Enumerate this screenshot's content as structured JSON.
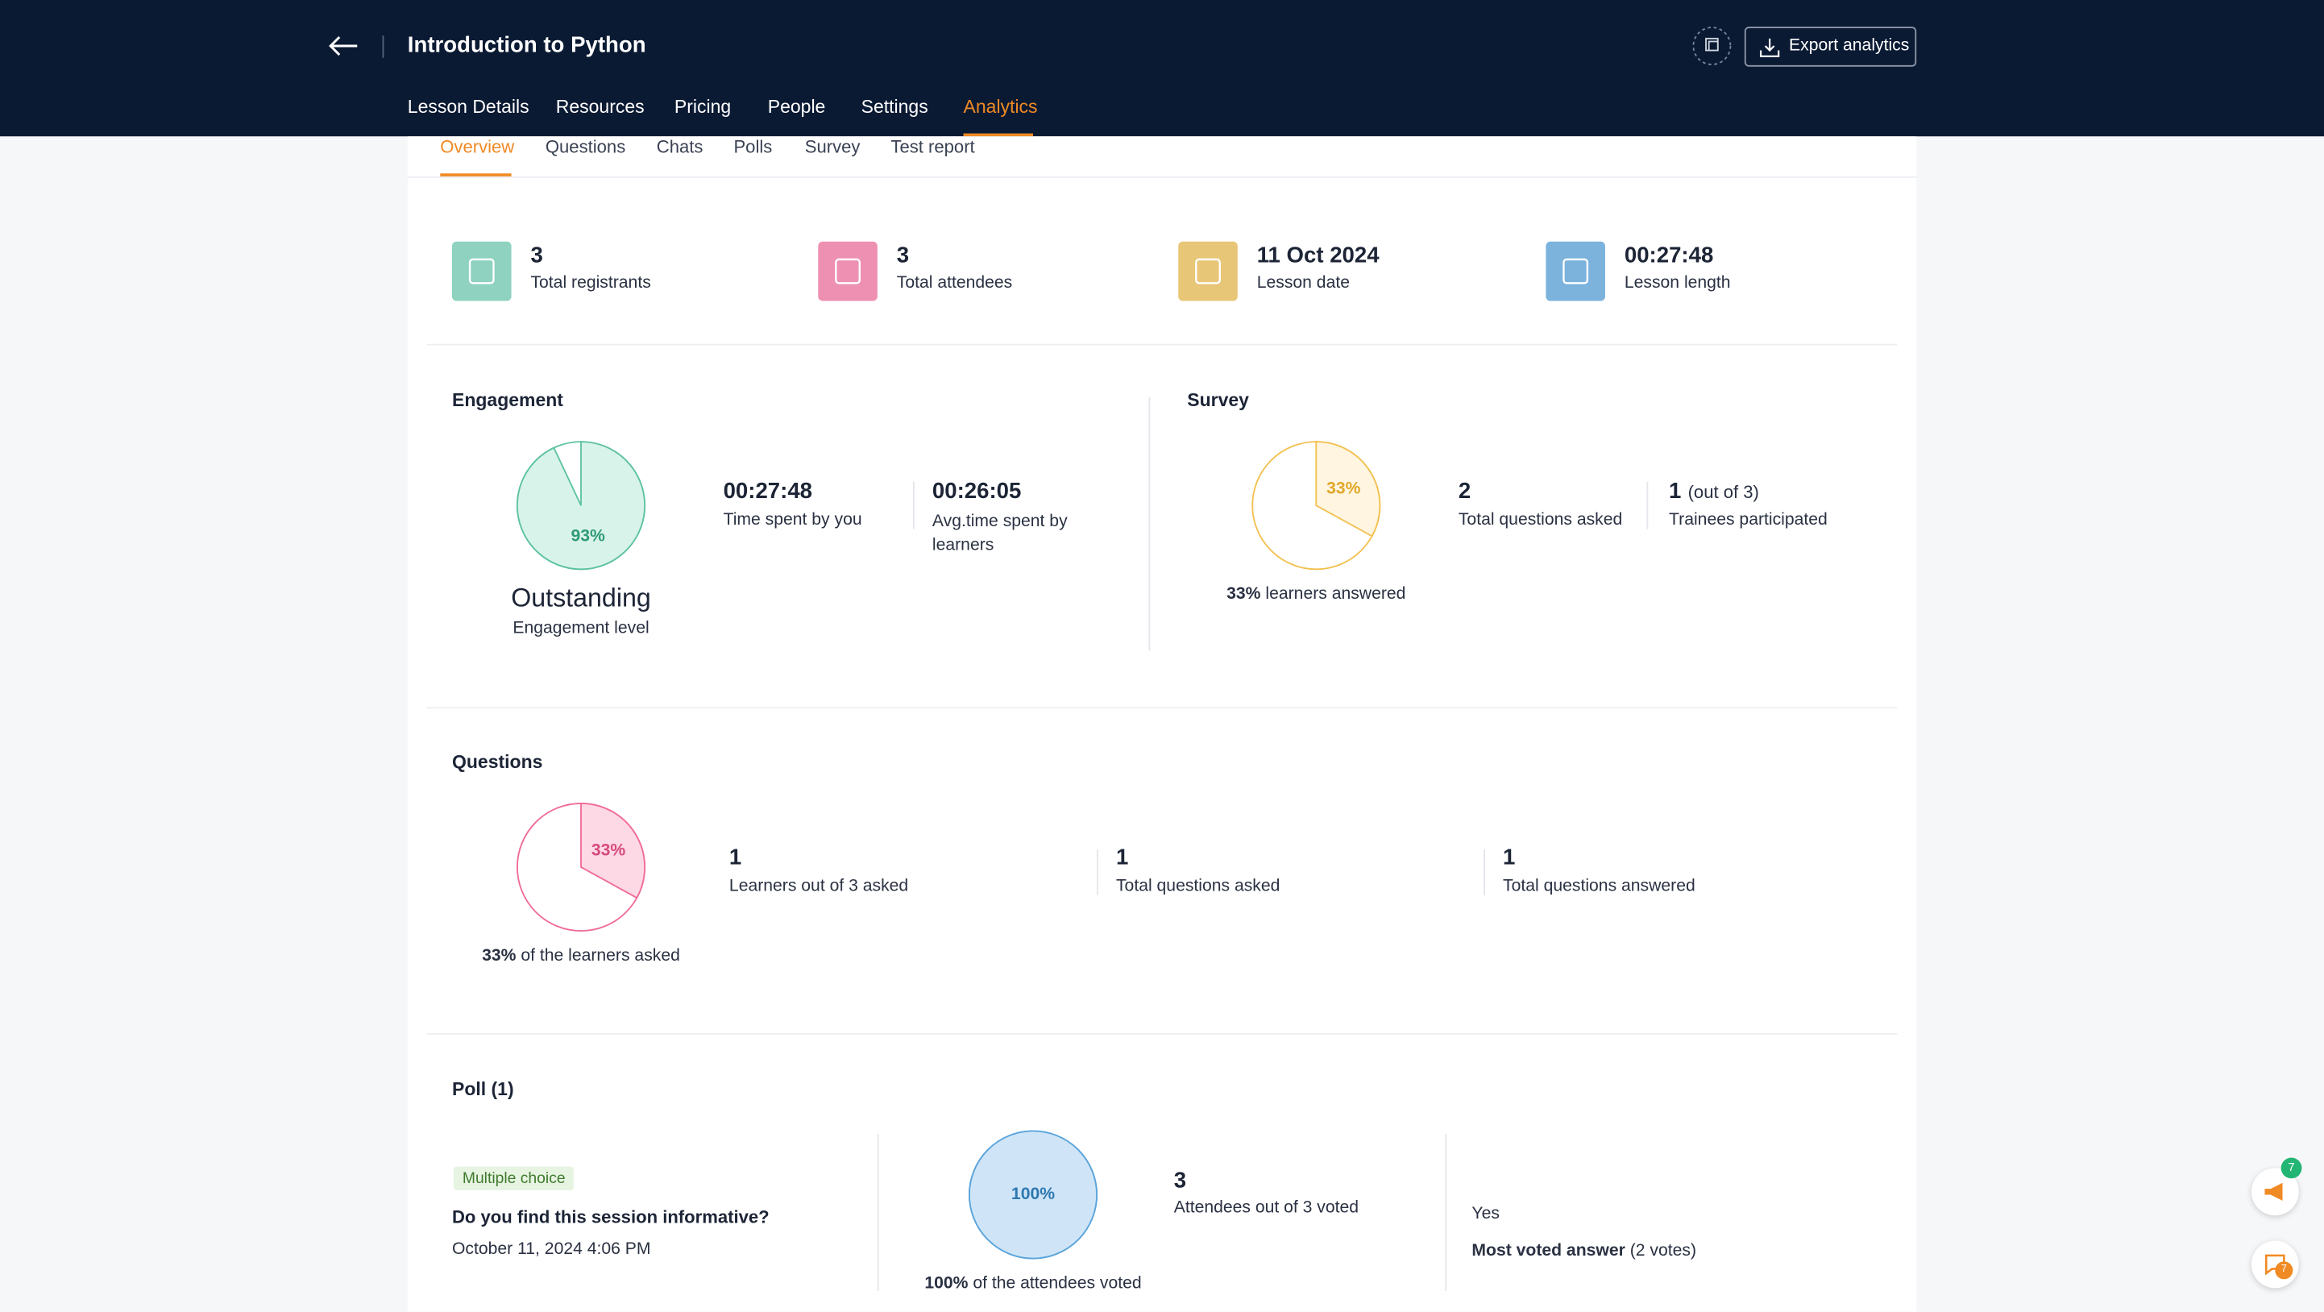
{
  "header": {
    "title": "Introduction to Python",
    "export_button": "Export analytics",
    "tabs": [
      {
        "label": "Lesson Details",
        "active": false
      },
      {
        "label": "Resources",
        "active": false
      },
      {
        "label": "Pricing",
        "active": false
      },
      {
        "label": "People",
        "active": false
      },
      {
        "label": "Settings",
        "active": false
      },
      {
        "label": "Analytics",
        "active": true
      }
    ]
  },
  "sub_tabs": [
    {
      "label": "Overview",
      "active": true
    },
    {
      "label": "Questions",
      "active": false
    },
    {
      "label": "Chats",
      "active": false
    },
    {
      "label": "Polls",
      "active": false
    },
    {
      "label": "Survey",
      "active": false
    },
    {
      "label": "Test report",
      "active": false
    }
  ],
  "stats": [
    {
      "value": "3",
      "label": "Total registrants",
      "color": "#8ed2bf"
    },
    {
      "value": "3",
      "label": "Total attendees",
      "color": "#ee90b1"
    },
    {
      "value": "11 Oct 2024",
      "label": "Lesson date",
      "color": "#e8c677"
    },
    {
      "value": "00:27:48",
      "label": "Lesson length",
      "color": "#7bb3dd"
    }
  ],
  "engagement": {
    "title": "Engagement",
    "pie": {
      "value": 93,
      "label": "93%",
      "color": "#5cc2a2",
      "fill": "#d8f3ea",
      "text_color": "#2f9a78"
    },
    "level": "Outstanding",
    "level_label": "Engagement level",
    "metrics": [
      {
        "value": "00:27:48",
        "label": "Time spent by you"
      },
      {
        "value": "00:26:05",
        "label": "Avg.time spent by learners"
      }
    ]
  },
  "survey": {
    "title": "Survey",
    "pie": {
      "value": 33,
      "label": "33%",
      "color": "#f3c04e",
      "fill": "#fff5e0",
      "text_color": "#e0a82a"
    },
    "caption": "learners answered",
    "metrics": [
      {
        "value": "2",
        "label": "Total questions asked"
      },
      {
        "value": "1",
        "extra": "(out of 3)",
        "label": "Trainees participated"
      }
    ]
  },
  "questions": {
    "title": "Questions",
    "pie": {
      "value": 33,
      "label": "33%",
      "color": "#f06a9a",
      "fill": "#fdd8e5",
      "text_color": "#d6497d"
    },
    "caption": "of the learners asked",
    "metrics": [
      {
        "value": "1",
        "label": "Learners out of 3 asked"
      },
      {
        "value": "1",
        "label": "Total questions asked"
      },
      {
        "value": "1",
        "label": "Total questions answered"
      }
    ]
  },
  "poll": {
    "title": "Poll (1)",
    "badge": "Multiple choice",
    "question": "Do you find this session informative?",
    "date": "October 11, 2024 4:06 PM",
    "pie": {
      "value": 100,
      "label": "100%",
      "color": "#5aa4db",
      "fill": "#cfe5f7",
      "text_color": "#2e78b0"
    },
    "caption": "of the attendees voted",
    "metric": {
      "value": "3",
      "label": "Attendees out of 3 voted"
    },
    "answer": "Yes",
    "most_voted": {
      "label": "Most voted answer",
      "votes": "(2 votes)"
    }
  },
  "floating": [
    {
      "count": "7"
    },
    {
      "count": "7"
    }
  ]
}
